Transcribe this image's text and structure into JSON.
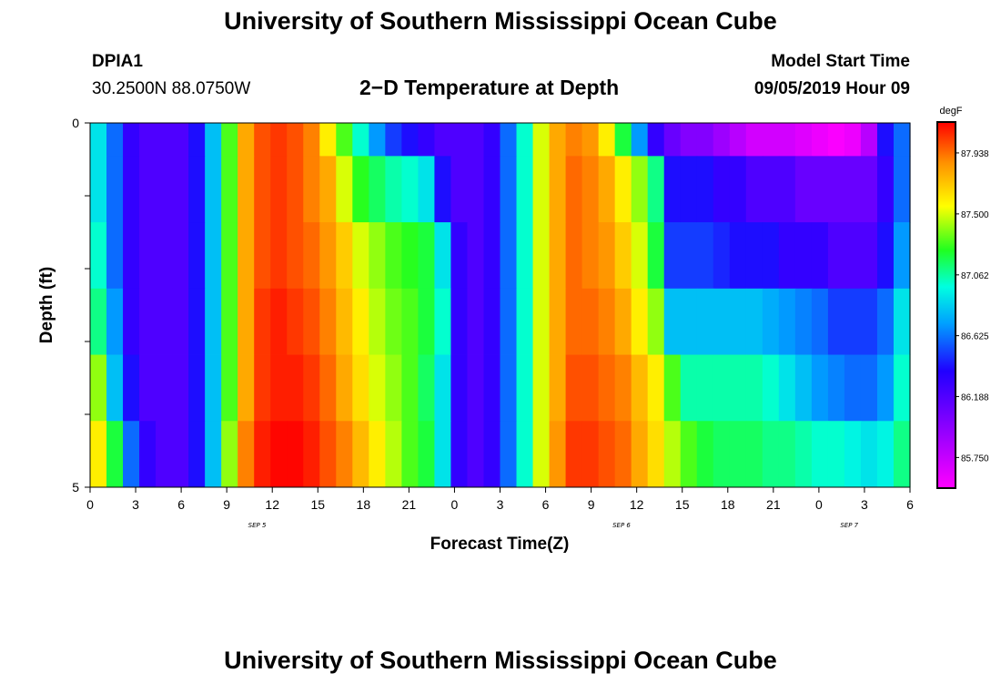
{
  "header": {
    "title": "University of Southern Mississippi Ocean Cube",
    "station_id": "DPIA1",
    "coordinates": "30.2500N 88.0750W",
    "subtitle": "2−D Temperature at Depth",
    "model_start_label": "Model Start Time",
    "model_start_value": "09/05/2019 Hour 09"
  },
  "footer": {
    "title": "University of Southern Mississippi Ocean Cube"
  },
  "chart_data": {
    "type": "heatmap",
    "title": "2−D Temperature at Depth",
    "xlabel": "Forecast Time(Z)",
    "ylabel": "Depth (ft)",
    "x_tick_labels": [
      "0",
      "3",
      "6",
      "9",
      "12",
      "15",
      "18",
      "21",
      "0",
      "3",
      "6",
      "9",
      "12",
      "15",
      "18",
      "21",
      "0",
      "3",
      "6"
    ],
    "x_date_labels": [
      {
        "label": "SEP 5",
        "hour": 11
      },
      {
        "label": "SEP 6",
        "hour": 35
      },
      {
        "label": "SEP 7",
        "hour": 50
      }
    ],
    "x_range_hours": [
      0,
      54
    ],
    "y_tick_labels": [
      "0",
      "5"
    ],
    "ylim": [
      0,
      5
    ],
    "depth_rows": [
      0,
      1,
      2,
      3,
      4,
      5
    ],
    "colorbar": {
      "unit": "degF",
      "min": 85.53,
      "max": 88.16,
      "labels": [
        "87.938",
        "87.500",
        "87.062",
        "86.625",
        "86.188",
        "85.750"
      ]
    },
    "temperature_rows": [
      [
        86.9,
        86.6,
        86.3,
        86.2,
        86.2,
        86.2,
        86.4,
        86.8,
        87.3,
        87.8,
        88.0,
        88.05,
        88.0,
        87.9,
        87.6,
        87.3,
        87.0,
        86.7,
        86.5,
        86.4,
        86.3,
        86.2,
        86.2,
        86.2,
        86.3,
        86.6,
        87.0,
        87.5,
        87.8,
        87.9,
        87.85,
        87.6,
        87.2,
        86.7,
        86.3,
        86.1,
        86.0,
        86.0,
        85.9,
        85.8,
        85.7,
        85.7,
        85.7,
        85.65,
        85.6,
        85.55,
        85.6,
        85.8,
        86.4,
        86.6
      ],
      [
        86.9,
        86.6,
        86.3,
        86.2,
        86.2,
        86.2,
        86.4,
        86.8,
        87.3,
        87.8,
        88.0,
        88.05,
        88.0,
        87.9,
        87.8,
        87.5,
        87.25,
        87.15,
        87.05,
        87.0,
        86.9,
        86.4,
        86.2,
        86.2,
        86.3,
        86.6,
        87.0,
        87.5,
        87.8,
        87.95,
        87.9,
        87.8,
        87.6,
        87.4,
        87.1,
        86.4,
        86.4,
        86.4,
        86.3,
        86.3,
        86.2,
        86.2,
        86.2,
        86.1,
        86.1,
        86.1,
        86.1,
        86.1,
        86.3,
        86.6
      ],
      [
        87.0,
        86.6,
        86.3,
        86.2,
        86.2,
        86.2,
        86.4,
        86.8,
        87.3,
        87.8,
        88.0,
        88.05,
        88.0,
        87.95,
        87.85,
        87.7,
        87.5,
        87.4,
        87.3,
        87.25,
        87.2,
        86.9,
        86.3,
        86.2,
        86.3,
        86.6,
        87.0,
        87.5,
        87.8,
        87.95,
        87.9,
        87.85,
        87.7,
        87.5,
        87.2,
        86.5,
        86.5,
        86.5,
        86.45,
        86.4,
        86.4,
        86.4,
        86.3,
        86.3,
        86.3,
        86.2,
        86.2,
        86.2,
        86.4,
        86.7
      ],
      [
        87.1,
        86.7,
        86.3,
        86.2,
        86.2,
        86.2,
        86.4,
        86.8,
        87.3,
        87.8,
        88.05,
        88.1,
        88.05,
        88.0,
        87.9,
        87.75,
        87.6,
        87.45,
        87.35,
        87.3,
        87.2,
        87.0,
        86.3,
        86.2,
        86.3,
        86.6,
        87.0,
        87.5,
        87.8,
        87.95,
        87.95,
        87.9,
        87.8,
        87.6,
        87.4,
        86.8,
        86.8,
        86.8,
        86.8,
        86.8,
        86.8,
        86.75,
        86.7,
        86.65,
        86.6,
        86.5,
        86.5,
        86.5,
        86.6,
        86.9
      ],
      [
        87.4,
        86.8,
        86.4,
        86.2,
        86.2,
        86.2,
        86.4,
        86.8,
        87.3,
        87.8,
        88.05,
        88.1,
        88.1,
        88.05,
        87.95,
        87.8,
        87.65,
        87.5,
        87.4,
        87.3,
        87.15,
        86.9,
        86.3,
        86.2,
        86.3,
        86.6,
        87.0,
        87.5,
        87.8,
        88.0,
        88.0,
        87.95,
        87.9,
        87.75,
        87.6,
        87.3,
        87.05,
        87.05,
        87.05,
        87.05,
        87.05,
        87.0,
        86.9,
        86.8,
        86.7,
        86.65,
        86.6,
        86.6,
        86.7,
        87.0
      ],
      [
        87.6,
        87.2,
        86.6,
        86.3,
        86.2,
        86.2,
        86.4,
        86.8,
        87.4,
        87.9,
        88.1,
        88.15,
        88.15,
        88.1,
        88.0,
        87.9,
        87.75,
        87.6,
        87.45,
        87.3,
        87.2,
        86.9,
        86.3,
        86.2,
        86.3,
        86.6,
        87.0,
        87.5,
        87.85,
        88.05,
        88.05,
        88.0,
        87.95,
        87.8,
        87.65,
        87.45,
        87.3,
        87.2,
        87.15,
        87.15,
        87.15,
        87.1,
        87.1,
        87.05,
        87.0,
        87.0,
        86.95,
        86.9,
        86.95,
        87.1
      ]
    ]
  }
}
